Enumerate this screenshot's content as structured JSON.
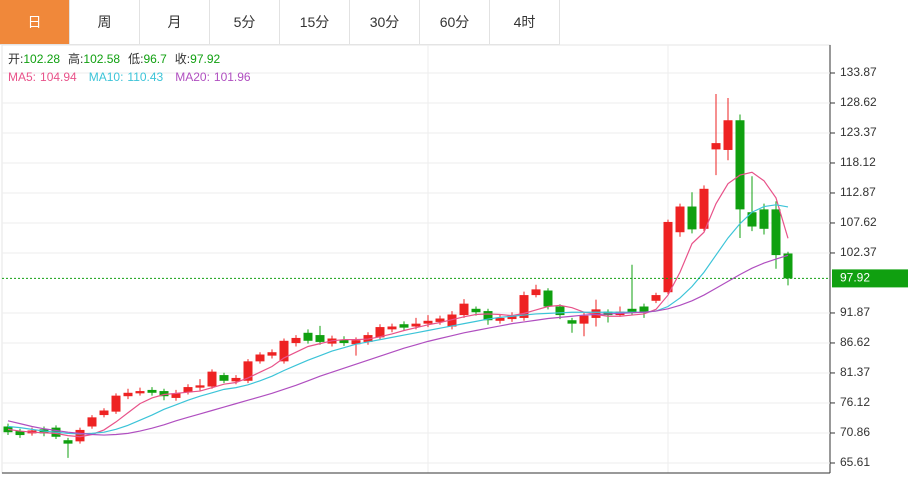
{
  "tabs": [
    "日",
    "周",
    "月",
    "5分",
    "15分",
    "30分",
    "60分",
    "4时"
  ],
  "chart_data": {
    "type": "candlestick",
    "ohlc_labels": [
      "开:",
      "高:",
      "低:",
      "收:"
    ],
    "up_color": "#ee2222",
    "down_color": "#10a010",
    "open": [
      72,
      71.2,
      70.8,
      71.5,
      71.8,
      69.6,
      69.4,
      72,
      74,
      74.6,
      77.3,
      77.8,
      78.4,
      78.2,
      77,
      78,
      78.8,
      79,
      81,
      79.9,
      80,
      83.4,
      84.4,
      83.4,
      86.6,
      88.4,
      88,
      86.5,
      87.2,
      86.4,
      86.8,
      87.6,
      89,
      89.9,
      89.5,
      90,
      90.3,
      89.5,
      91.5,
      92.6,
      92.2,
      90.5,
      90.8,
      91,
      95,
      95.8,
      93,
      90.6,
      90,
      91,
      92.1,
      91.5,
      92.6,
      93,
      94,
      95.5,
      106,
      110.5,
      106.6,
      120.5,
      120.4,
      125.6,
      109.5,
      110,
      110,
      102.28
    ],
    "high": [
      72.5,
      71.6,
      71.8,
      72,
      72.2,
      70,
      71.8,
      74,
      75.2,
      77.8,
      78.6,
      78.8,
      78.9,
      78.6,
      78.4,
      79.4,
      80.3,
      82,
      81.4,
      81,
      83.8,
      85,
      85.5,
      87.4,
      88,
      89,
      89.6,
      87.9,
      87.8,
      87.6,
      88.5,
      89.9,
      90,
      90.4,
      91,
      91.5,
      91.4,
      92.2,
      94.3,
      93,
      92.6,
      91.6,
      92,
      95.6,
      96.8,
      96.2,
      93.4,
      91,
      92,
      94.2,
      92.5,
      93,
      100.3,
      93.5,
      95.4,
      108.2,
      111,
      113,
      114.2,
      130.2,
      129.5,
      126.6,
      115.8,
      111,
      111.4,
      102.58
    ],
    "low": [
      70.5,
      70,
      70.4,
      70.3,
      69.8,
      66.5,
      69,
      71.6,
      73.6,
      74.2,
      76.8,
      77.4,
      77.4,
      76.6,
      76.5,
      77.6,
      78.3,
      78.6,
      79.6,
      79.4,
      79.6,
      83,
      83.9,
      83,
      86,
      86.5,
      86.3,
      86,
      86.1,
      84.4,
      86.3,
      87.2,
      88.5,
      88.8,
      89,
      89.4,
      89.8,
      89,
      91,
      91.4,
      89.8,
      90,
      90.3,
      90.5,
      94.6,
      92.5,
      90.8,
      88.4,
      87.8,
      89.5,
      90.2,
      91.2,
      91.6,
      91,
      93.6,
      95.2,
      105.2,
      105.8,
      106.2,
      116,
      118.6,
      105,
      106.2,
      105.6,
      99.6,
      96.7
    ],
    "close": [
      71,
      70.5,
      71.3,
      70.8,
      70.2,
      69,
      71.4,
      73.6,
      74.8,
      77.4,
      77.9,
      78.2,
      77.9,
      77.3,
      77.8,
      78.9,
      79.2,
      81.6,
      80,
      80.5,
      83.4,
      84.6,
      85,
      87,
      87.5,
      87,
      86.8,
      87.4,
      86.6,
      87.1,
      88,
      89.4,
      89.5,
      89.3,
      90,
      90.5,
      90.9,
      91.6,
      93.5,
      92,
      90.6,
      91,
      91.5,
      95,
      96,
      93,
      91.5,
      90,
      91.4,
      92.5,
      91.5,
      92.1,
      92,
      92,
      95,
      107.8,
      110.5,
      106.5,
      113.6,
      121.6,
      125.6,
      110,
      107,
      106.6,
      102,
      97.92
    ],
    "series": [
      {
        "name": "MA5:",
        "color": "#e8538a",
        "values": [
          71.5,
          71.2,
          71,
          70.9,
          70.8,
          70.4,
          70.2,
          70.6,
          71.4,
          72.8,
          74.4,
          76,
          77,
          77.6,
          77.8,
          78,
          78.2,
          78.8,
          79.4,
          79.7,
          80.5,
          81.5,
          82.5,
          84,
          85,
          86,
          86.5,
          87,
          87.2,
          87.2,
          87.3,
          87.7,
          88.2,
          88.8,
          89.3,
          89.8,
          90.2,
          90.7,
          91.2,
          91.6,
          91.7,
          91.6,
          91.4,
          91.8,
          92.4,
          93,
          93.2,
          92.8,
          92,
          91.6,
          91.3,
          91.3,
          91.5,
          91.7,
          92.5,
          95,
          99,
          104,
          106,
          111,
          114.5,
          116,
          116.5,
          115,
          112,
          104.94
        ]
      },
      {
        "name": "MA10:",
        "color": "#3cc4d8",
        "values": [
          72,
          71.8,
          71.5,
          71.2,
          71,
          70.8,
          70.7,
          70.8,
          71,
          71.5,
          72.2,
          73.1,
          74,
          75,
          75.8,
          76.6,
          77.3,
          77.9,
          78.5,
          78.8,
          79.3,
          80,
          80.8,
          81.8,
          82.7,
          83.6,
          84.4,
          85.2,
          85.8,
          86.4,
          86.8,
          87.2,
          87.6,
          88,
          88.4,
          88.8,
          89.2,
          89.6,
          90,
          90.4,
          90.8,
          91.1,
          91.3,
          91.5,
          91.7,
          91.8,
          91.9,
          92,
          92,
          92,
          92,
          92,
          92,
          92,
          92.2,
          93,
          94.5,
          96.5,
          99,
          102,
          105,
          107.5,
          109.5,
          110.5,
          110.8,
          110.43
        ]
      },
      {
        "name": "MA20:",
        "color": "#b04fc0",
        "values": [
          73,
          72.5,
          72,
          71.6,
          71.3,
          71,
          70.8,
          70.6,
          70.5,
          70.6,
          70.8,
          71.2,
          71.7,
          72.3,
          73,
          73.6,
          74.2,
          74.8,
          75.4,
          76,
          76.6,
          77.2,
          77.8,
          78.5,
          79.2,
          80,
          80.8,
          81.5,
          82.2,
          82.9,
          83.6,
          84.3,
          85,
          85.7,
          86.3,
          86.9,
          87.4,
          87.9,
          88.4,
          88.8,
          89.2,
          89.6,
          90,
          90.3,
          90.6,
          90.9,
          91.1,
          91.3,
          91.5,
          91.6,
          91.7,
          91.8,
          91.9,
          92,
          92.2,
          92.6,
          93.2,
          94,
          95,
          96.2,
          97.4,
          98.6,
          99.7,
          100.6,
          101.3,
          101.96
        ]
      }
    ],
    "ylim": [
      63.86,
      138.77
    ],
    "yticks": [
      65.61,
      70.86,
      76.12,
      81.37,
      86.62,
      91.87,
      102.37,
      107.62,
      112.87,
      118.12,
      123.37,
      128.62,
      133.87
    ],
    "grid": true,
    "last_price_color": "#10a010"
  }
}
